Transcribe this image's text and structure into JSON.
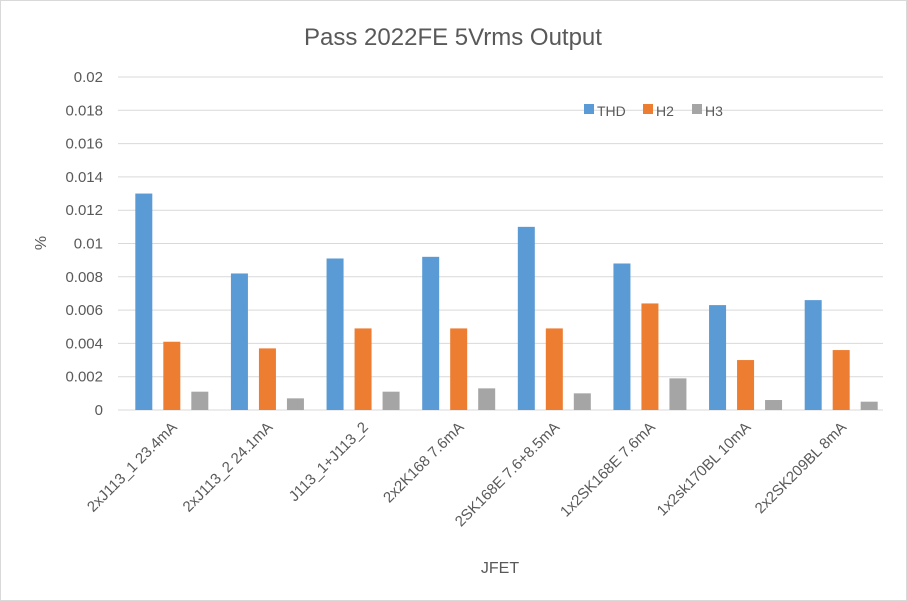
{
  "chart_data": {
    "type": "bar",
    "title": "Pass 2022FE 5Vrms Output",
    "xlabel": "JFET",
    "ylabel": "%",
    "ylim": [
      0,
      0.02
    ],
    "yticks": [
      "0",
      "0.002",
      "0.004",
      "0.006",
      "0.008",
      "0.01",
      "0.012",
      "0.014",
      "0.016",
      "0.018",
      "0.02"
    ],
    "categories": [
      "2xJ113_1 23.4mA",
      "2xJ113_2 24.1mA",
      "J113_1+J113_2",
      "2x2K168 7.6mA",
      "2SK168E 7.6+8.5mA",
      "1x2SK168E 7.6mA",
      "1x2sk170BL 10mA",
      "2x2SK209BL 8mA"
    ],
    "series": [
      {
        "name": "THD",
        "color": "#5b9bd5",
        "values": [
          0.013,
          0.0082,
          0.0091,
          0.0092,
          0.011,
          0.0088,
          0.0063,
          0.0066
        ]
      },
      {
        "name": "H2",
        "color": "#ed7d31",
        "values": [
          0.0041,
          0.0037,
          0.0049,
          0.0049,
          0.0049,
          0.0064,
          0.003,
          0.0036
        ]
      },
      {
        "name": "H3",
        "color": "#a5a5a5",
        "values": [
          0.0011,
          0.0007,
          0.0011,
          0.0013,
          0.001,
          0.0019,
          0.0006,
          0.0005
        ]
      }
    ],
    "grid": true,
    "legend_position": "top-right"
  }
}
